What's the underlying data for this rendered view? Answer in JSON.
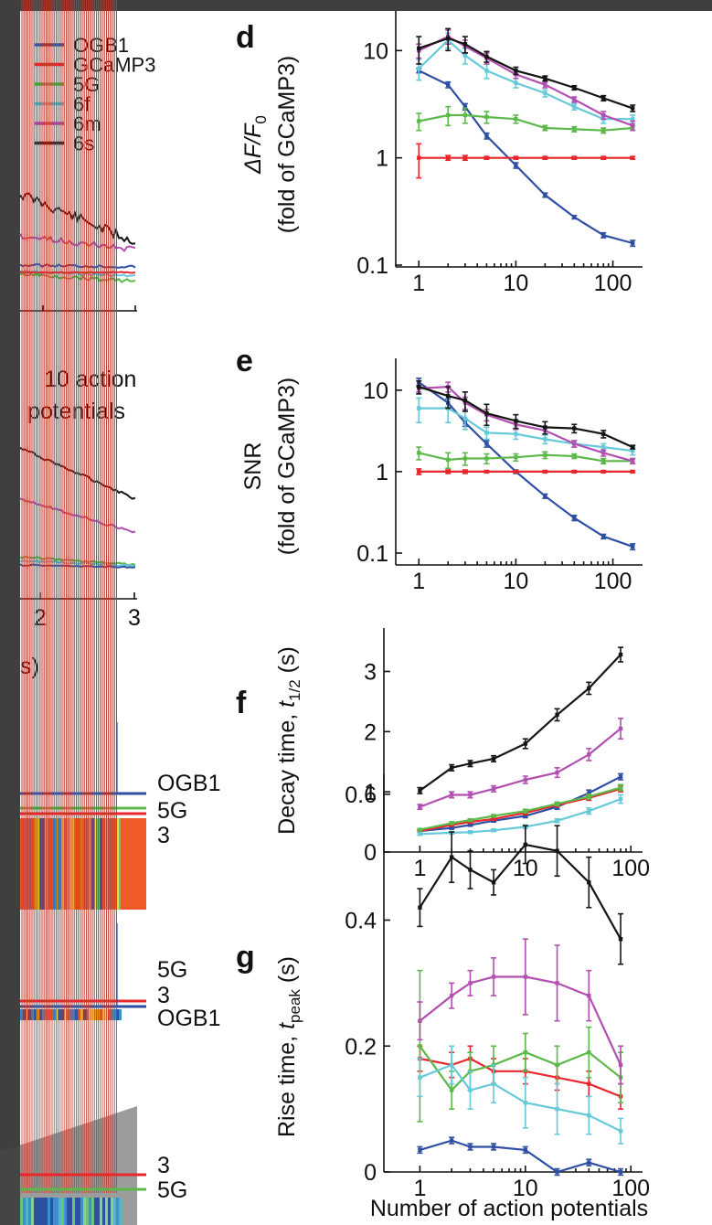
{
  "legend": [
    "OGB1",
    "GCaMP3",
    "5G",
    "6f",
    "6m",
    "6s"
  ],
  "colors": {
    "OGB1": "#2e4fa3",
    "GCaMP3": "#e8262b",
    "5G": "#5db84a",
    "6f": "#66c9d9",
    "6m": "#b24fb1",
    "6s": "#151515"
  },
  "left": {
    "b_text": [
      "10 action",
      "potentials"
    ],
    "b_xticks": [
      "2",
      "3"
    ],
    "b_xlabel_partial": "s)",
    "c1_labels": [
      "OGB1",
      "5G",
      "3"
    ],
    "c2_labels": [
      "5G",
      "3",
      "OGB1"
    ],
    "c3_labels": [
      "3",
      "5G"
    ]
  },
  "x_axis_label": "Number of action potentials",
  "chart_data": [
    {
      "panel": "d",
      "type": "line",
      "xscale": "log",
      "yscale": "log",
      "ylabel_math": "ΔF/F",
      "ylabel_sub": "0",
      "ylabel2": "(fold of GCaMP3)",
      "xticks": [
        1,
        10,
        100
      ],
      "xtick_labels": [
        "1",
        "10",
        "100"
      ],
      "yticks": [
        0.1,
        1,
        10
      ],
      "ytick_labels": [
        "0.1",
        "1",
        "10"
      ],
      "xlim": [
        0.75,
        170
      ],
      "ylim": [
        0.1,
        20
      ],
      "x": [
        1,
        2,
        3,
        5,
        10,
        20,
        40,
        80,
        160
      ],
      "series": [
        {
          "name": "OGB1",
          "values": [
            6.5,
            4.8,
            3.0,
            1.6,
            0.85,
            0.45,
            0.28,
            0.19,
            0.16
          ],
          "err": [
            0.3,
            0.3,
            0.2,
            0.1,
            0.05,
            0.02,
            0.01,
            0.01,
            0.01
          ]
        },
        {
          "name": "GCaMP3",
          "values": [
            1,
            1,
            1,
            1,
            1,
            1,
            1,
            1,
            1
          ],
          "err": [
            0.35,
            0.05,
            0.05,
            0.03,
            0.03,
            0.03,
            0.03,
            0.03,
            0.03
          ]
        },
        {
          "name": "5G",
          "values": [
            2.2,
            2.5,
            2.5,
            2.4,
            2.3,
            1.9,
            1.85,
            1.8,
            1.9
          ],
          "err": [
            0.4,
            0.5,
            0.4,
            0.3,
            0.2,
            0.1,
            0.1,
            0.1,
            0.1
          ]
        },
        {
          "name": "6f",
          "values": [
            6.8,
            12.5,
            9.0,
            6.5,
            5.0,
            4.0,
            3.0,
            2.3,
            2.3
          ],
          "err": [
            1.5,
            2.0,
            1.5,
            1.0,
            0.5,
            0.3,
            0.2,
            0.2,
            0.2
          ]
        },
        {
          "name": "6m",
          "values": [
            10.0,
            13.5,
            11.0,
            8.5,
            6.0,
            4.8,
            3.5,
            2.5,
            2.0
          ],
          "err": [
            1.5,
            2.0,
            1.5,
            1.0,
            0.5,
            0.3,
            0.2,
            0.2,
            0.2
          ]
        },
        {
          "name": "6s",
          "values": [
            10.5,
            13.0,
            11.5,
            8.8,
            6.5,
            5.5,
            4.5,
            3.6,
            2.9
          ],
          "err": [
            3.0,
            3.0,
            2.0,
            1.0,
            0.5,
            0.3,
            0.2,
            0.2,
            0.2
          ]
        }
      ]
    },
    {
      "panel": "e",
      "type": "line",
      "xscale": "log",
      "yscale": "log",
      "ylabel": "SNR",
      "ylabel2": "(fold of GCaMP3)",
      "xticks": [
        1,
        10,
        100
      ],
      "xtick_labels": [
        "1",
        "10",
        "100"
      ],
      "yticks": [
        0.1,
        1,
        10
      ],
      "ytick_labels": [
        "0.1",
        "1",
        "10"
      ],
      "xlim": [
        0.75,
        170
      ],
      "ylim": [
        0.1,
        20
      ],
      "x": [
        1,
        2,
        3,
        5,
        10,
        20,
        40,
        80,
        160
      ],
      "series": [
        {
          "name": "OGB1",
          "values": [
            12.5,
            7.0,
            4.0,
            2.2,
            1.0,
            0.5,
            0.27,
            0.16,
            0.12
          ],
          "err": [
            1.5,
            0.8,
            0.4,
            0.2,
            0.05,
            0.03,
            0.02,
            0.01,
            0.01
          ]
        },
        {
          "name": "GCaMP3",
          "values": [
            1,
            1,
            1,
            1,
            1,
            1,
            1,
            1,
            1
          ],
          "err": [
            0.08,
            0.05,
            0.05,
            0.03,
            0.03,
            0.03,
            0.03,
            0.03,
            0.03
          ]
        },
        {
          "name": "5G",
          "values": [
            1.7,
            1.4,
            1.45,
            1.45,
            1.5,
            1.6,
            1.55,
            1.35,
            1.35
          ],
          "err": [
            0.3,
            0.3,
            0.25,
            0.2,
            0.15,
            0.15,
            0.1,
            0.1,
            0.1
          ]
        },
        {
          "name": "6f",
          "values": [
            6.0,
            6.0,
            4.5,
            3.0,
            2.9,
            2.5,
            2.2,
            2.0,
            1.8
          ],
          "err": [
            2.0,
            2.0,
            1.2,
            0.5,
            0.4,
            0.3,
            0.2,
            0.2,
            0.2
          ]
        },
        {
          "name": "6m",
          "values": [
            10.5,
            11.0,
            7.0,
            5.0,
            3.8,
            3.2,
            2.2,
            1.7,
            1.35
          ],
          "err": [
            1.0,
            1.5,
            1.2,
            0.8,
            0.5,
            0.3,
            0.2,
            0.15,
            0.1
          ]
        },
        {
          "name": "6s",
          "values": [
            11.0,
            8.5,
            7.5,
            5.2,
            4.2,
            3.5,
            3.4,
            2.9,
            2.0
          ],
          "err": [
            2.0,
            2.5,
            2.0,
            1.5,
            0.8,
            0.6,
            0.4,
            0.3,
            0.1
          ]
        }
      ]
    },
    {
      "panel": "f",
      "type": "line",
      "xscale": "log",
      "yscale": "linear",
      "ylabel_pre": "Decay time, ",
      "ylabel_var": "t",
      "ylabel_sub": "1/2",
      "ylabel_post": " (s)",
      "xticks": [
        1,
        10,
        100
      ],
      "xtick_labels": [
        "1",
        "10",
        "100"
      ],
      "yticks": [
        0,
        1,
        2,
        3
      ],
      "ytick_labels": [
        "0",
        "1",
        "2",
        "3"
      ],
      "xlim": [
        0.75,
        110
      ],
      "ylim": [
        0,
        3.6
      ],
      "x": [
        1,
        2,
        3,
        5,
        10,
        20,
        40,
        80
      ],
      "series": [
        {
          "name": "OGB1",
          "values": [
            0.35,
            0.4,
            0.45,
            0.52,
            0.6,
            0.75,
            0.98,
            1.25
          ],
          "err": [
            0.02,
            0.02,
            0.02,
            0.02,
            0.03,
            0.04,
            0.05,
            0.05
          ]
        },
        {
          "name": "GCaMP3",
          "values": [
            0.35,
            0.45,
            0.5,
            0.55,
            0.65,
            0.78,
            0.9,
            1.05
          ],
          "err": [
            0.02,
            0.02,
            0.02,
            0.02,
            0.03,
            0.03,
            0.04,
            0.05
          ]
        },
        {
          "name": "5G",
          "values": [
            0.37,
            0.48,
            0.53,
            0.6,
            0.68,
            0.8,
            0.92,
            1.07
          ],
          "err": [
            0.02,
            0.02,
            0.02,
            0.02,
            0.03,
            0.03,
            0.04,
            0.05
          ]
        },
        {
          "name": "6f",
          "values": [
            0.3,
            0.32,
            0.33,
            0.36,
            0.42,
            0.52,
            0.68,
            0.88
          ],
          "err": [
            0.02,
            0.02,
            0.02,
            0.02,
            0.03,
            0.03,
            0.05,
            0.07
          ]
        },
        {
          "name": "6m",
          "values": [
            0.75,
            0.95,
            0.95,
            1.05,
            1.2,
            1.32,
            1.62,
            2.05
          ],
          "err": [
            0.04,
            0.05,
            0.05,
            0.05,
            0.06,
            0.08,
            0.1,
            0.17
          ]
        },
        {
          "name": "6s",
          "values": [
            1.02,
            1.4,
            1.47,
            1.55,
            1.8,
            2.28,
            2.72,
            3.28
          ],
          "err": [
            0.05,
            0.05,
            0.05,
            0.05,
            0.08,
            0.1,
            0.1,
            0.12
          ]
        }
      ]
    },
    {
      "panel": "g",
      "type": "line",
      "xscale": "log",
      "yscale": "linear",
      "ylabel_pre": "Rise time, ",
      "ylabel_var": "t",
      "ylabel_sub": "peak",
      "ylabel_post": " (s)",
      "xticks": [
        1,
        10,
        100
      ],
      "xtick_labels": [
        "1",
        "10",
        "100"
      ],
      "yticks": [
        0,
        0.2,
        0.4,
        0.6
      ],
      "ytick_labels": [
        "0",
        "0.2",
        "0.4",
        "0.6"
      ],
      "xlim": [
        0.75,
        110
      ],
      "ylim": [
        0,
        0.62
      ],
      "x": [
        1,
        2,
        3,
        5,
        10,
        20,
        40,
        80
      ],
      "series": [
        {
          "name": "OGB1",
          "values": [
            0.035,
            0.05,
            0.04,
            0.04,
            0.035,
            0.0,
            0.015,
            0.0
          ],
          "err": [
            0.005,
            0.005,
            0.005,
            0.005,
            0.005,
            0.005,
            0.005,
            0.005
          ]
        },
        {
          "name": "GCaMP3",
          "values": [
            0.18,
            0.17,
            0.18,
            0.16,
            0.16,
            0.15,
            0.14,
            0.12
          ],
          "err": [
            0.02,
            0.02,
            0.02,
            0.02,
            0.02,
            0.02,
            0.02,
            0.02
          ]
        },
        {
          "name": "5G",
          "values": [
            0.2,
            0.13,
            0.16,
            0.17,
            0.19,
            0.17,
            0.19,
            0.15
          ],
          "err": [
            0.12,
            0.03,
            0.03,
            0.03,
            0.03,
            0.03,
            0.04,
            0.04
          ]
        },
        {
          "name": "6f",
          "values": [
            0.15,
            0.17,
            0.13,
            0.14,
            0.11,
            0.1,
            0.09,
            0.065
          ],
          "err": [
            0.03,
            0.03,
            0.03,
            0.03,
            0.04,
            0.04,
            0.03,
            0.02
          ]
        },
        {
          "name": "6m",
          "values": [
            0.24,
            0.28,
            0.3,
            0.31,
            0.31,
            0.3,
            0.28,
            0.17
          ],
          "err": [
            0.03,
            0.02,
            0.02,
            0.03,
            0.06,
            0.06,
            0.04,
            0.03
          ]
        },
        {
          "name": "6s",
          "values": [
            0.42,
            0.5,
            0.48,
            0.46,
            0.52,
            0.51,
            0.46,
            0.37
          ],
          "err": [
            0.03,
            0.04,
            0.03,
            0.02,
            0.03,
            0.04,
            0.04,
            0.04
          ]
        }
      ]
    }
  ]
}
